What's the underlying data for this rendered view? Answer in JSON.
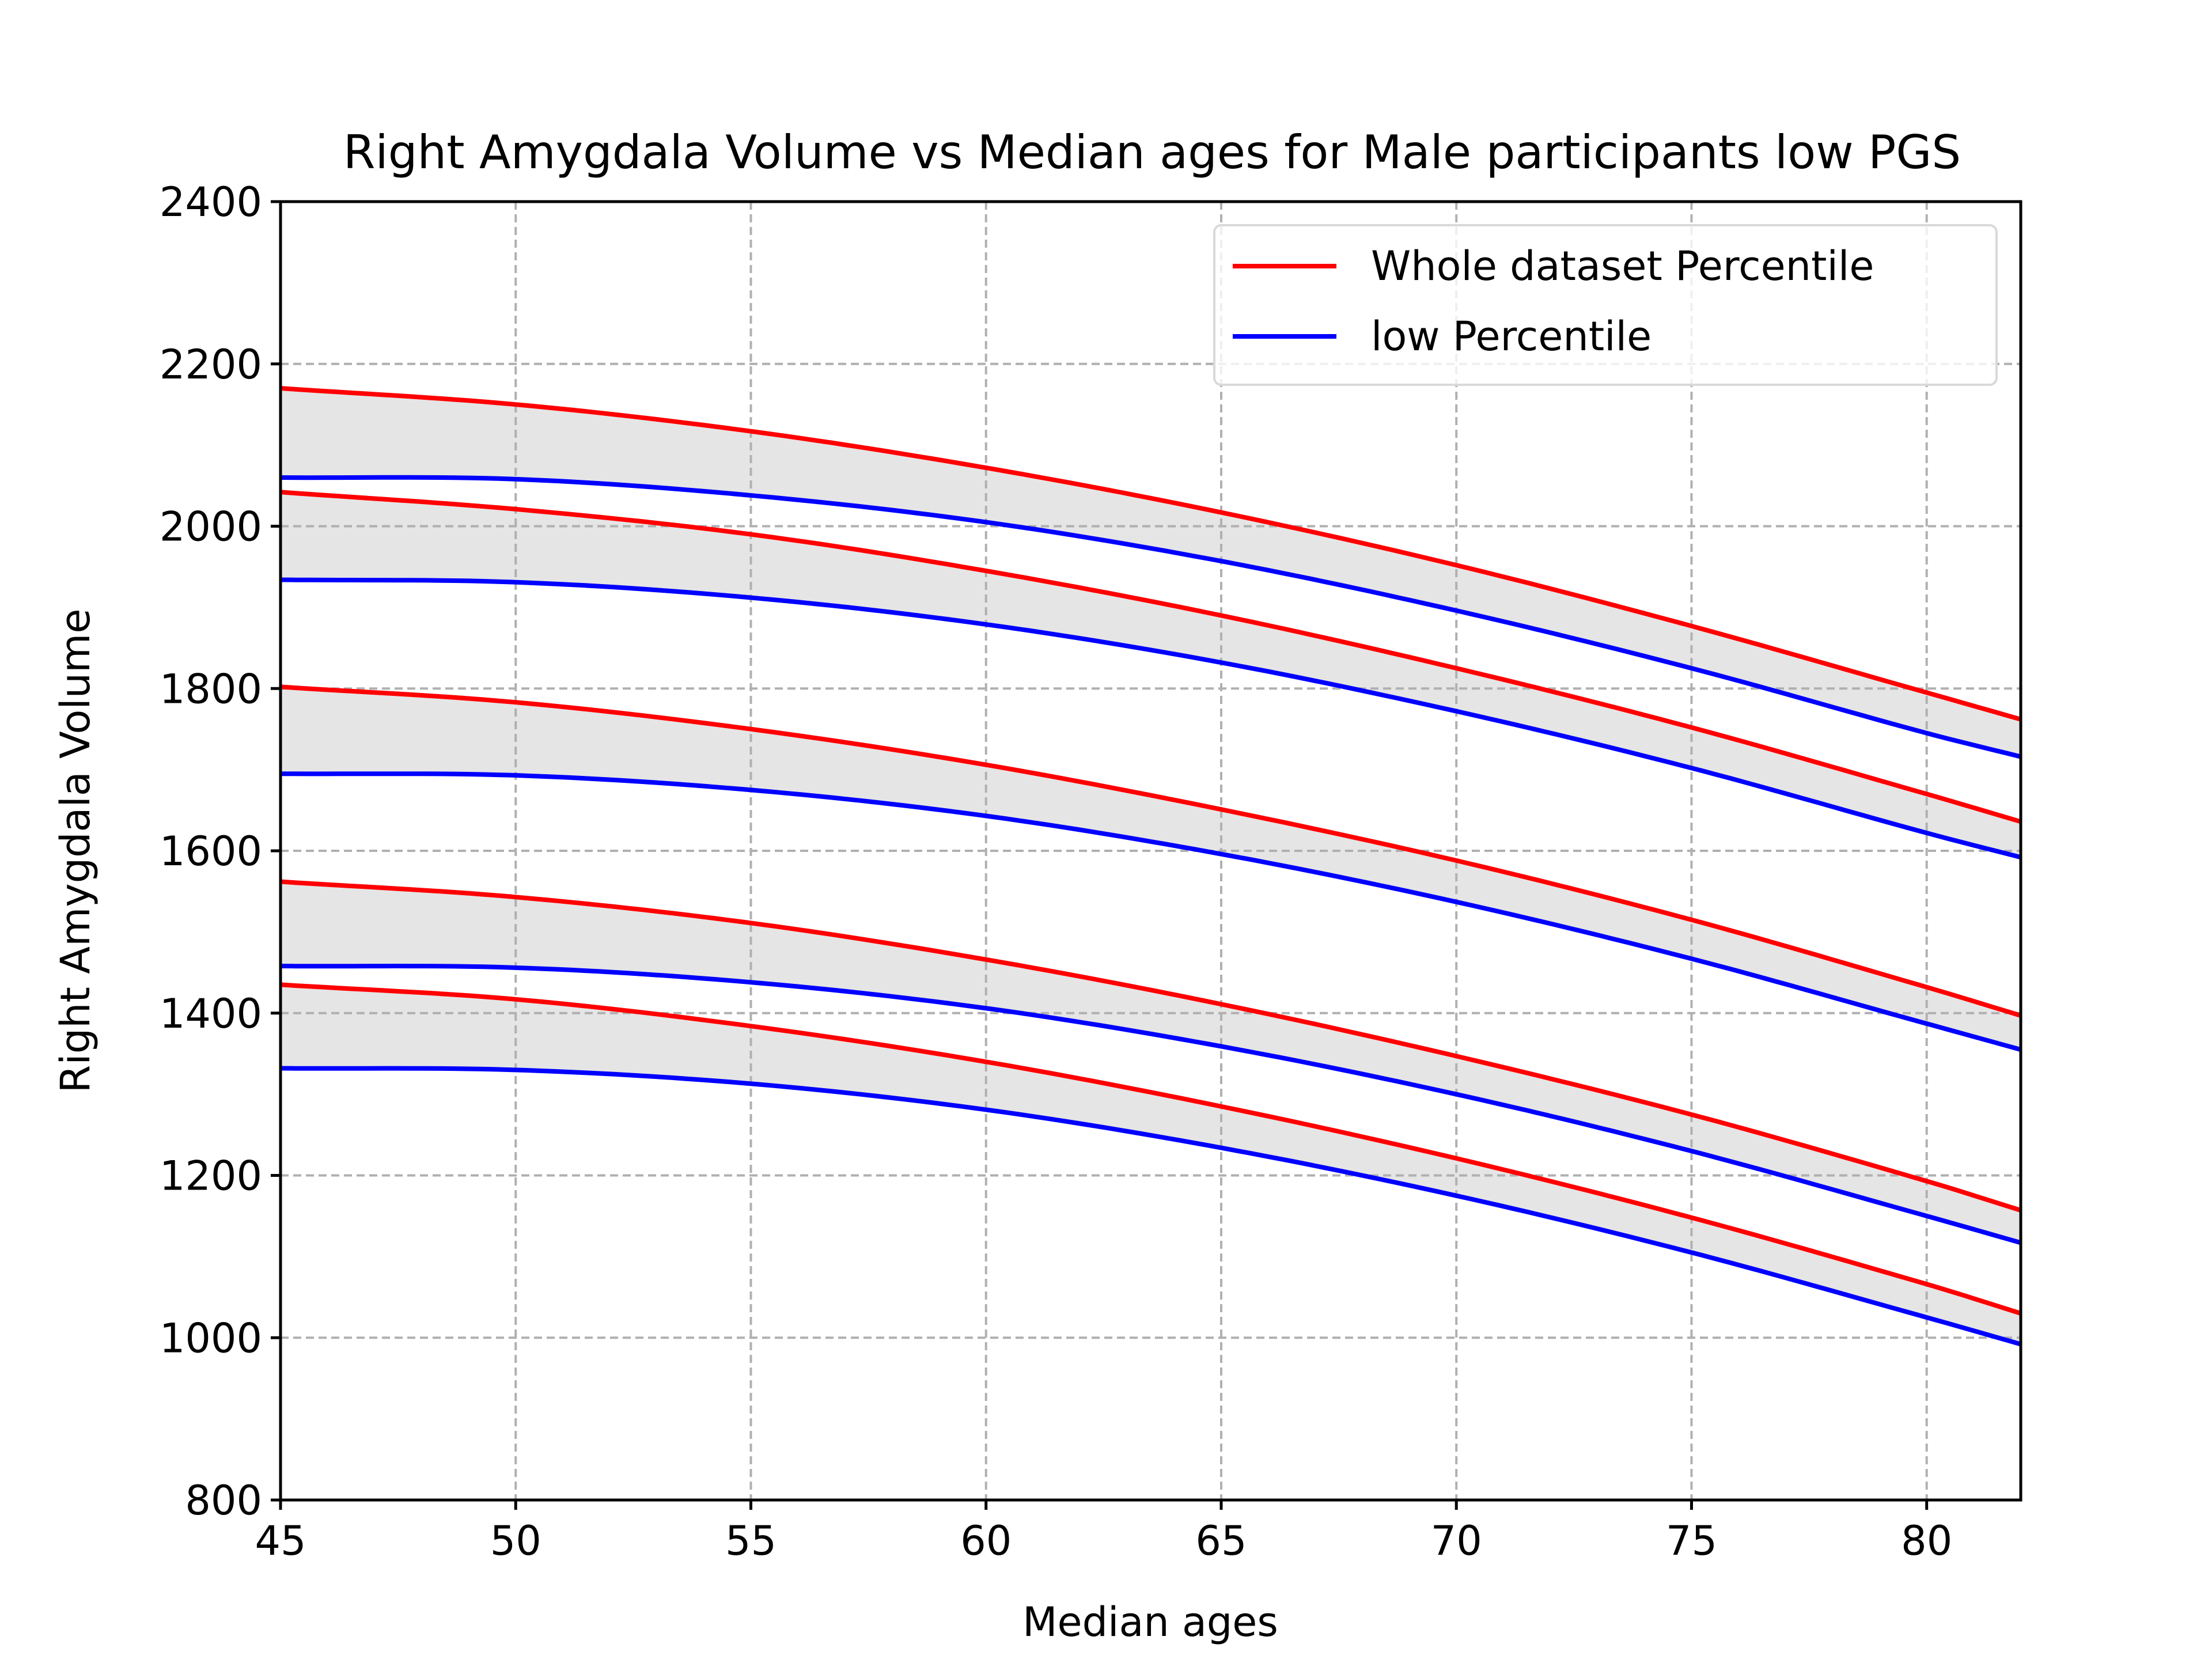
{
  "chart_data": {
    "type": "line",
    "title": "Right Amygdala Volume vs Median ages for Male participants low PGS",
    "xlabel": "Median ages",
    "ylabel": "Right Amygdala Volume",
    "xlim": [
      45,
      82
    ],
    "ylim": [
      800,
      2400
    ],
    "xticks": [
      45,
      50,
      55,
      60,
      65,
      70,
      75,
      80
    ],
    "yticks": [
      800,
      1000,
      1200,
      1400,
      1600,
      1800,
      2000,
      2200,
      2400
    ],
    "grid": true,
    "grid_style": "dashed",
    "legend_position": "upper right",
    "x": [
      45,
      50,
      55,
      60,
      65,
      70,
      75,
      80,
      82
    ],
    "series": [
      {
        "name": "Whole dataset Percentile",
        "color": "#ff0000",
        "values": [
          2170,
          2150,
          2117,
          2072,
          2017,
          1952,
          1877,
          1795,
          1762
        ]
      },
      {
        "color": "#ff0000",
        "values": [
          2042,
          2021,
          1990,
          1945,
          1890,
          1825,
          1752,
          1670,
          1636
        ]
      },
      {
        "color": "#ff0000",
        "values": [
          1802,
          1783,
          1750,
          1706,
          1651,
          1588,
          1515,
          1432,
          1397
        ]
      },
      {
        "color": "#ff0000",
        "values": [
          1562,
          1543,
          1511,
          1466,
          1411,
          1347,
          1275,
          1193,
          1157
        ]
      },
      {
        "color": "#ff0000",
        "values": [
          1435,
          1417,
          1384,
          1340,
          1285,
          1221,
          1148,
          1066,
          1030
        ]
      },
      {
        "name": "low Percentile",
        "color": "#0000ff",
        "values": [
          2060,
          2058,
          2038,
          2005,
          1957,
          1896,
          1825,
          1745,
          1716
        ]
      },
      {
        "color": "#0000ff",
        "values": [
          1934,
          1931,
          1912,
          1879,
          1832,
          1772,
          1702,
          1622,
          1592
        ]
      },
      {
        "color": "#0000ff",
        "values": [
          1695,
          1693,
          1675,
          1643,
          1596,
          1537,
          1467,
          1387,
          1355
        ]
      },
      {
        "color": "#0000ff",
        "values": [
          1458,
          1456,
          1438,
          1406,
          1359,
          1300,
          1230,
          1150,
          1117
        ]
      },
      {
        "color": "#0000ff",
        "values": [
          1332,
          1330,
          1313,
          1281,
          1234,
          1175,
          1105,
          1025,
          992
        ]
      }
    ],
    "bands": [
      {
        "upper_series": 0,
        "lower_series": 5,
        "color": "#e5e5e5"
      },
      {
        "upper_series": 1,
        "lower_series": 6,
        "color": "#e5e5e5"
      },
      {
        "upper_series": 2,
        "lower_series": 7,
        "color": "#e5e5e5"
      },
      {
        "upper_series": 3,
        "lower_series": 8,
        "color": "#e5e5e5"
      },
      {
        "upper_series": 4,
        "lower_series": 9,
        "color": "#e5e5e5"
      }
    ],
    "legend": [
      {
        "label": "Whole dataset Percentile",
        "color": "#ff0000"
      },
      {
        "label": "low Percentile",
        "color": "#0000ff"
      }
    ]
  }
}
